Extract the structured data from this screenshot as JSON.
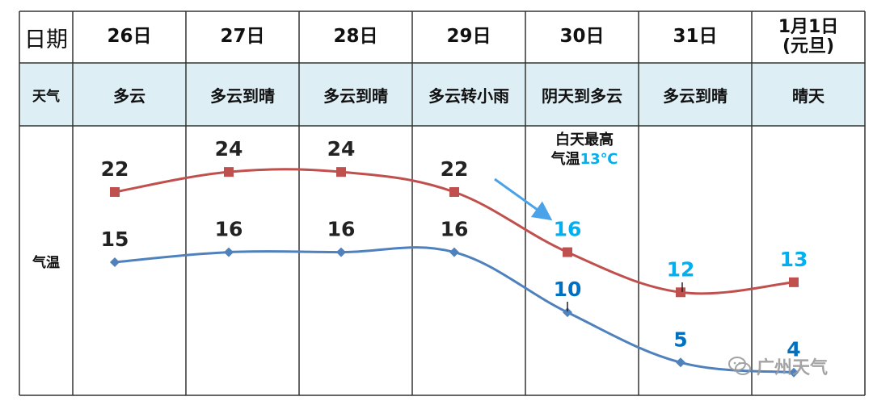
{
  "header": {
    "first_label": "日期",
    "dates": [
      {
        "label": "26日"
      },
      {
        "label": "27日"
      },
      {
        "label": "28日"
      },
      {
        "label": "29日"
      },
      {
        "label": "30日"
      },
      {
        "label": "31日"
      },
      {
        "label": "1月1日\n(元旦)"
      }
    ]
  },
  "weather_row": {
    "label": "天气",
    "items": [
      "多云",
      "多云到晴",
      "多云到晴",
      "多云转小雨",
      "阴天到多云",
      "多云到晴",
      "晴天"
    ]
  },
  "temp_row": {
    "label": "气温"
  },
  "annotation": {
    "line1": "白天最高",
    "line2_prefix": "气温",
    "line2_value": "13℃"
  },
  "watermark": {
    "text": "广州天气",
    "icon": "wechat-icon"
  },
  "colors": {
    "header_bg": "#ddeef5",
    "grid": "#333333",
    "high_line": "#c0504d",
    "low_line": "#4f81bd",
    "label_dark": "#222222",
    "label_cyan": "#00b0f0",
    "label_blue": "#0070c0",
    "arrow": "#4aa3e8"
  },
  "chart_data": {
    "type": "line",
    "categories": [
      "26日",
      "27日",
      "28日",
      "29日",
      "30日",
      "31日",
      "1月1日(元旦)"
    ],
    "series": [
      {
        "values": [
          22,
          24,
          24,
          22,
          16,
          12,
          13
        ],
        "marker": "square",
        "color": "#c0504d"
      },
      {
        "values": [
          15,
          16,
          16,
          16,
          10,
          5,
          4
        ],
        "marker": "diamond",
        "color": "#4f81bd"
      }
    ],
    "data_labels": true,
    "grid": false,
    "legend": "none"
  }
}
